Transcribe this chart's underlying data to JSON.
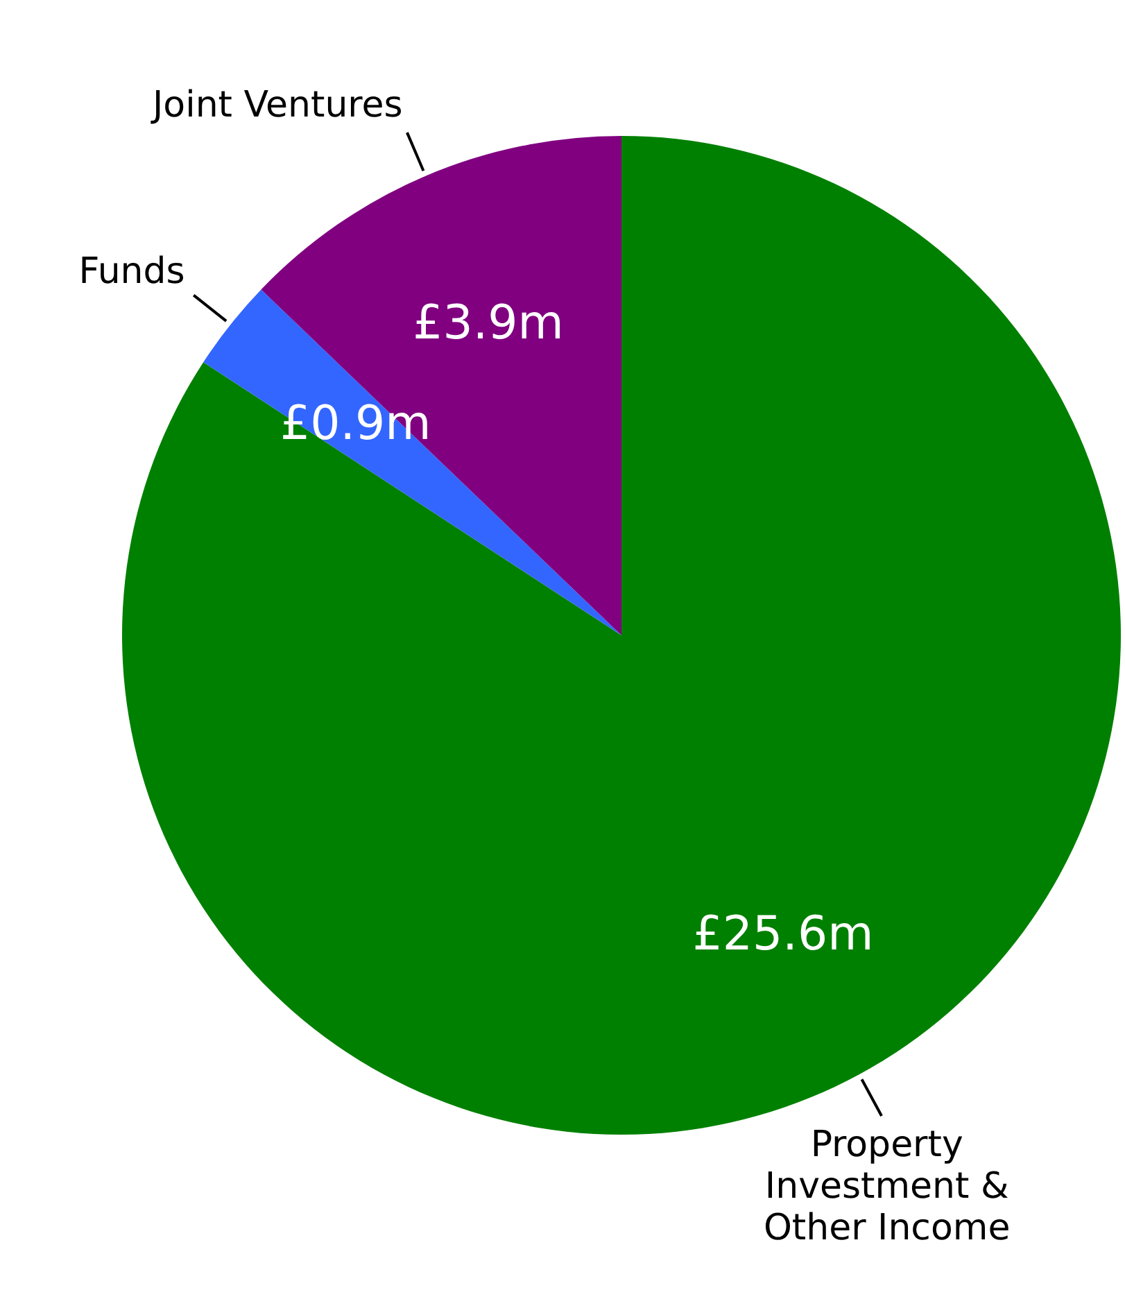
{
  "chart_data": {
    "type": "pie",
    "categories": [
      "Property Investment & Other Income",
      "Funds",
      "Joint Ventures"
    ],
    "values": [
      25.6,
      0.9,
      3.9
    ],
    "colors": [
      "#008000",
      "#3366ff",
      "#800080"
    ],
    "value_labels": [
      "£25.6m",
      "£0.9m",
      "£3.9m"
    ]
  }
}
